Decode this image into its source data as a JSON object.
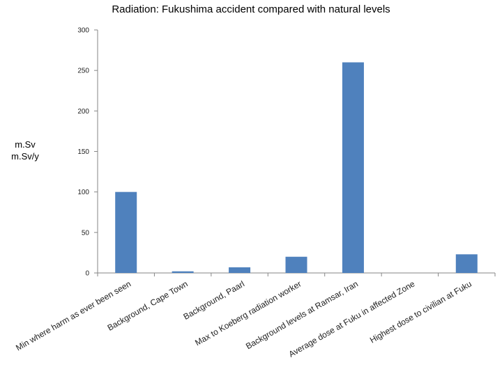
{
  "chart_data": {
    "type": "bar",
    "title": "Radiation:  Fukushima accident compared with natural levels",
    "ylabel": [
      "m.Sv",
      "m.Sv/y"
    ],
    "xlabel": "",
    "ylim": [
      0,
      300
    ],
    "yticks": [
      0,
      50,
      100,
      150,
      200,
      250,
      300
    ],
    "grid": false,
    "legend": "none",
    "bar_color": "#4f81bd",
    "categories": [
      "Min where harm as ever been seen",
      "Background, Cape Town",
      "Background, Paarl",
      "Max to Koeberg radiation worker",
      "Background levels at Ramsar, Iran",
      "Average dose at Fuku in affected Zone",
      "Highest dose to civilian at Fuku"
    ],
    "values": [
      100,
      2,
      7,
      20,
      260,
      0,
      23
    ]
  }
}
